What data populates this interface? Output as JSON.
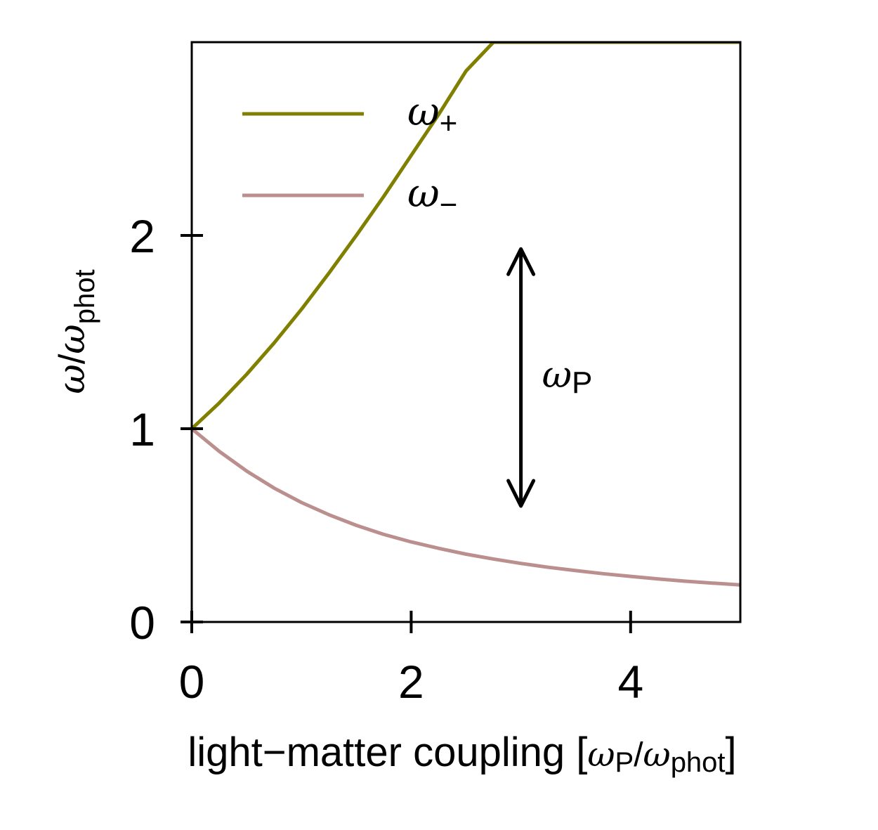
{
  "chart_data": {
    "type": "line",
    "title": "",
    "xlabel": {
      "main": "light−matter coupling [",
      "num_symbol": "ω",
      "num_sub": "P",
      "slash": "/",
      "den_symbol": "ω",
      "den_sub": "phot",
      "close": "]"
    },
    "ylabel": {
      "symbol": "ω",
      "slash": "/",
      "den_symbol": "ω",
      "den_sub": "phot"
    },
    "xlim": [
      0,
      5
    ],
    "ylim": [
      0,
      3
    ],
    "xticks": [
      {
        "value": 0,
        "label": "0"
      },
      {
        "value": 2,
        "label": "2"
      },
      {
        "value": 4,
        "label": "4"
      }
    ],
    "yticks": [
      {
        "value": 0,
        "label": "0"
      },
      {
        "value": 1,
        "label": "1"
      },
      {
        "value": 2,
        "label": "2"
      }
    ],
    "grid": false,
    "legend": {
      "placement": "upper-left"
    },
    "series": [
      {
        "name": "ω+",
        "symbol": "ω",
        "sub": "+",
        "color": "#808000",
        "x": [
          0,
          0.25,
          0.5,
          0.75,
          1.0,
          1.25,
          1.5,
          1.75,
          2.0,
          2.25,
          2.5,
          2.75,
          3.0,
          3.25,
          3.5,
          3.75,
          4.0,
          4.25,
          4.5,
          4.75,
          5.0
        ],
        "y": [
          1.0,
          1.133,
          1.281,
          1.443,
          1.618,
          1.805,
          2.0,
          2.202,
          2.414,
          2.626,
          2.851,
          3.0,
          3.0,
          3.0,
          3.0,
          3.0,
          3.0,
          3.0,
          3.0,
          3.0,
          3.0
        ]
      },
      {
        "name": "ω−",
        "symbol": "ω",
        "sub": "−",
        "color": "#bc8f8f",
        "x": [
          0,
          0.25,
          0.5,
          0.75,
          1.0,
          1.25,
          1.5,
          1.75,
          2.0,
          2.25,
          2.5,
          2.75,
          3.0,
          3.25,
          3.5,
          3.75,
          4.0,
          4.25,
          4.5,
          4.75,
          5.0
        ],
        "y": [
          1.0,
          0.883,
          0.781,
          0.693,
          0.618,
          0.555,
          0.5,
          0.453,
          0.414,
          0.381,
          0.351,
          0.326,
          0.303,
          0.283,
          0.266,
          0.25,
          0.236,
          0.223,
          0.211,
          0.201,
          0.192
        ]
      }
    ],
    "annotations": [
      {
        "type": "double-arrow",
        "x": 3.0,
        "y_from": 0.6,
        "y_to": 1.93,
        "label_symbol": "ω",
        "label_sub": "P",
        "color": "#000000"
      }
    ]
  }
}
